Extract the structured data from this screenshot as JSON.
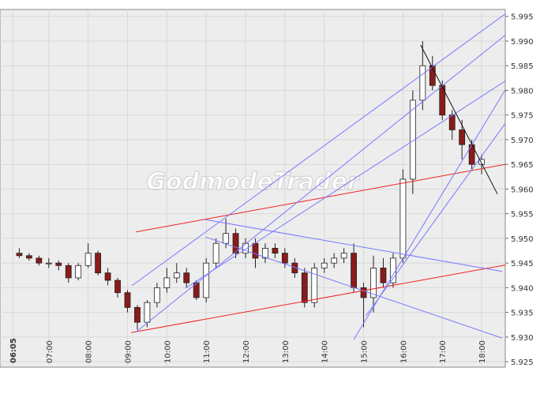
{
  "chart_data": {
    "type": "candlestick",
    "watermark": "GodmodeTrader",
    "x": [
      6.25,
      6.5,
      6.75,
      7,
      7.25,
      7.5,
      7.75,
      8,
      8.25,
      8.5,
      8.75,
      9,
      9.25,
      9.5,
      9.75,
      10,
      10.25,
      10.5,
      10.75,
      11,
      11.25,
      11.5,
      11.75,
      12,
      12.25,
      12.5,
      12.75,
      13,
      13.25,
      13.5,
      13.75,
      14,
      14.25,
      14.5,
      14.75,
      15,
      15.25,
      15.5,
      15.75,
      16,
      16.25,
      16.5,
      16.75,
      17,
      17.25,
      17.5,
      17.75,
      18
    ],
    "open": [
      5.947,
      5.9465,
      5.946,
      5.945,
      5.945,
      5.9445,
      5.942,
      5.9445,
      5.947,
      5.943,
      5.9415,
      5.939,
      5.936,
      5.933,
      5.937,
      5.94,
      5.942,
      5.943,
      5.941,
      5.938,
      5.945,
      5.949,
      5.951,
      5.947,
      5.949,
      5.946,
      5.948,
      5.947,
      5.945,
      5.943,
      5.937,
      5.944,
      5.945,
      5.946,
      5.947,
      5.94,
      5.938,
      5.944,
      5.941,
      5.946,
      5.962,
      5.978,
      5.985,
      5.981,
      5.975,
      5.972,
      5.969,
      5.965
    ],
    "high": [
      5.948,
      5.947,
      5.9465,
      5.946,
      5.9455,
      5.945,
      5.945,
      5.949,
      5.9475,
      5.944,
      5.942,
      5.9395,
      5.9365,
      5.9375,
      5.941,
      5.944,
      5.945,
      5.944,
      5.9415,
      5.946,
      5.95,
      5.954,
      5.952,
      5.95,
      5.95,
      5.949,
      5.949,
      5.948,
      5.946,
      5.944,
      5.945,
      5.946,
      5.947,
      5.948,
      5.949,
      5.941,
      5.9465,
      5.946,
      5.947,
      5.964,
      5.98,
      5.99,
      5.987,
      5.982,
      5.976,
      5.974,
      5.97,
      5.967
    ],
    "low": [
      5.946,
      5.9455,
      5.9445,
      5.944,
      5.9435,
      5.941,
      5.9415,
      5.944,
      5.9425,
      5.9405,
      5.938,
      5.935,
      5.9315,
      5.932,
      5.936,
      5.939,
      5.941,
      5.94,
      5.9375,
      5.937,
      5.944,
      5.948,
      5.946,
      5.946,
      5.944,
      5.945,
      5.946,
      5.944,
      5.942,
      5.936,
      5.936,
      5.943,
      5.944,
      5.945,
      5.939,
      5.932,
      5.935,
      5.94,
      5.94,
      5.945,
      5.959,
      5.976,
      5.98,
      5.974,
      5.97,
      5.966,
      5.964,
      5.963
    ],
    "close": [
      5.9465,
      5.946,
      5.945,
      5.945,
      5.9445,
      5.942,
      5.9445,
      5.947,
      5.943,
      5.9415,
      5.939,
      5.936,
      5.933,
      5.937,
      5.94,
      5.942,
      5.943,
      5.941,
      5.938,
      5.945,
      5.949,
      5.951,
      5.947,
      5.949,
      5.946,
      5.948,
      5.947,
      5.945,
      5.943,
      5.937,
      5.944,
      5.945,
      5.946,
      5.947,
      5.94,
      5.938,
      5.944,
      5.941,
      5.946,
      5.962,
      5.978,
      5.985,
      5.981,
      5.975,
      5.972,
      5.969,
      5.965,
      5.966
    ],
    "up_color": "#ffffff",
    "down_color": "#8b1a1a",
    "lines": [
      {
        "color": "#ee2222",
        "x": [
          9.21,
          18.6
        ],
        "y": [
          5.9513,
          5.965
        ]
      },
      {
        "color": "#ee2222",
        "x": [
          9.09,
          18.6
        ],
        "y": [
          5.9309,
          5.9446
        ]
      },
      {
        "color": "#7777ff",
        "x": [
          9.11,
          18.6
        ],
        "y": [
          5.9404,
          5.9955
        ]
      },
      {
        "color": "#7777ff",
        "x": [
          9.21,
          18.6
        ],
        "y": [
          5.931,
          5.9912
        ]
      },
      {
        "color": "#7777ff",
        "x": [
          10.47,
          18.6
        ],
        "y": [
          5.9399,
          5.9819
        ]
      },
      {
        "color": "#7777ff",
        "x": [
          10.98,
          18.52
        ],
        "y": [
          5.9538,
          5.9433
        ]
      },
      {
        "color": "#7777ff",
        "x": [
          10.98,
          18.52
        ],
        "y": [
          5.9503,
          5.9298
        ]
      },
      {
        "color": "#7777ff",
        "x": [
          14.75,
          18.6
        ],
        "y": [
          5.9295,
          5.9801
        ]
      },
      {
        "color": "#7777ff",
        "x": [
          15.06,
          18.6
        ],
        "y": [
          5.9343,
          5.9733
        ]
      },
      {
        "color": "#111111",
        "x": [
          16.45,
          18.4
        ],
        "y": [
          5.9892,
          5.959
        ]
      }
    ],
    "xlim": [
      5.76,
      18.6
    ],
    "ylim": [
      5.9239,
      5.9964
    ],
    "xticks": [
      {
        "value": 6.0833,
        "label": "06:05"
      },
      {
        "value": 7,
        "label": "07:00"
      },
      {
        "value": 8,
        "label": "08:00"
      },
      {
        "value": 9,
        "label": "09:00"
      },
      {
        "value": 10,
        "label": "10:00"
      },
      {
        "value": 11,
        "label": "11:00"
      },
      {
        "value": 12,
        "label": "12:00"
      },
      {
        "value": 13,
        "label": "13:00"
      },
      {
        "value": 14,
        "label": "14:00"
      },
      {
        "value": 15,
        "label": "15:00"
      },
      {
        "value": 16,
        "label": "16:00"
      },
      {
        "value": 17,
        "label": "17:00"
      },
      {
        "value": 18,
        "label": "18:00"
      }
    ],
    "yticks": [
      5.925,
      {
        "value": 5.93,
        "label": "5.930"
      },
      5.935,
      {
        "value": 5.94,
        "label": "5.940"
      },
      5.945,
      {
        "value": 5.95,
        "label": "5.950"
      },
      5.955,
      {
        "value": 5.96,
        "label": "5.960"
      },
      5.965,
      {
        "value": 5.97,
        "label": "5.970"
      },
      5.975,
      {
        "value": 5.98,
        "label": "5.980"
      },
      5.985,
      {
        "value": 5.99,
        "label": "5.990"
      },
      5.995
    ],
    "grid": true
  }
}
